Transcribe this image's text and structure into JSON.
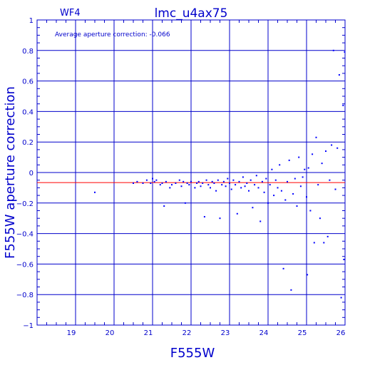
{
  "chart_data": {
    "type": "scatter",
    "title": "lmc_u4ax75",
    "chip_label": "WF4",
    "annotation": "Average aperture correction: -0.066",
    "xlabel": "F555W",
    "ylabel": "F555W aperture correction",
    "xlim": [
      18,
      26
    ],
    "ylim": [
      -1,
      1
    ],
    "x_ticks": [
      19,
      20,
      21,
      22,
      23,
      24,
      25,
      26
    ],
    "y_ticks": [
      -1,
      -0.8,
      -0.6,
      -0.4,
      -0.2,
      0,
      0.2,
      0.4,
      0.6,
      0.8,
      1
    ],
    "x_tick_labels": [
      "19",
      "20",
      "21",
      "22",
      "23",
      "24",
      "25",
      "26"
    ],
    "y_tick_labels": [
      "−1",
      "−0.8",
      "−0.6",
      "−0.4",
      "−0.2",
      "0",
      "0.2",
      "0.4",
      "0.6",
      "0.8",
      "1"
    ],
    "grid": true,
    "reference_line": {
      "y": -0.066,
      "color": "#ff0000"
    },
    "colors": {
      "axes": "#0000cc",
      "points": "#0000ff",
      "reference": "#ff0000"
    },
    "series": [
      {
        "points": [
          [
            19.5,
            -0.13
          ],
          [
            20.5,
            -0.07
          ],
          [
            20.6,
            -0.06
          ],
          [
            20.75,
            -0.07
          ],
          [
            20.85,
            -0.05
          ],
          [
            20.95,
            -0.07
          ],
          [
            21.0,
            -0.04
          ],
          [
            21.05,
            -0.06
          ],
          [
            21.1,
            -0.05
          ],
          [
            21.2,
            -0.08
          ],
          [
            21.25,
            -0.07
          ],
          [
            21.3,
            -0.22
          ],
          [
            21.35,
            -0.06
          ],
          [
            21.45,
            -0.1
          ],
          [
            21.5,
            -0.08
          ],
          [
            21.6,
            -0.07
          ],
          [
            21.7,
            -0.05
          ],
          [
            21.75,
            -0.09
          ],
          [
            21.8,
            -0.06
          ],
          [
            21.85,
            -0.2
          ],
          [
            21.9,
            -0.07
          ],
          [
            21.95,
            -0.08
          ],
          [
            22.0,
            -0.06
          ],
          [
            22.1,
            -0.1
          ],
          [
            22.15,
            -0.07
          ],
          [
            22.2,
            -0.06
          ],
          [
            22.25,
            -0.09
          ],
          [
            22.3,
            -0.07
          ],
          [
            22.35,
            -0.29
          ],
          [
            22.4,
            -0.05
          ],
          [
            22.45,
            -0.08
          ],
          [
            22.5,
            -0.1
          ],
          [
            22.55,
            -0.06
          ],
          [
            22.6,
            -0.07
          ],
          [
            22.65,
            -0.12
          ],
          [
            22.7,
            -0.05
          ],
          [
            22.75,
            -0.3
          ],
          [
            22.8,
            -0.08
          ],
          [
            22.85,
            -0.06
          ],
          [
            22.9,
            -0.09
          ],
          [
            22.95,
            -0.04
          ],
          [
            23.0,
            -0.07
          ],
          [
            23.05,
            -0.11
          ],
          [
            23.1,
            -0.05
          ],
          [
            23.15,
            -0.08
          ],
          [
            23.2,
            -0.27
          ],
          [
            23.25,
            -0.06
          ],
          [
            23.3,
            -0.1
          ],
          [
            23.35,
            -0.03
          ],
          [
            23.4,
            -0.09
          ],
          [
            23.45,
            -0.07
          ],
          [
            23.5,
            -0.12
          ],
          [
            23.55,
            -0.05
          ],
          [
            23.6,
            -0.23
          ],
          [
            23.65,
            -0.08
          ],
          [
            23.7,
            -0.02
          ],
          [
            23.75,
            -0.1
          ],
          [
            23.8,
            -0.32
          ],
          [
            23.85,
            -0.06
          ],
          [
            23.9,
            -0.13
          ],
          [
            23.95,
            -0.04
          ],
          [
            24.0,
            -0.2
          ],
          [
            24.05,
            -0.08
          ],
          [
            24.1,
            0.02
          ],
          [
            24.15,
            -0.15
          ],
          [
            24.2,
            -0.05
          ],
          [
            24.25,
            -0.1
          ],
          [
            24.3,
            0.05
          ],
          [
            24.35,
            -0.12
          ],
          [
            24.4,
            -0.63
          ],
          [
            24.45,
            -0.18
          ],
          [
            24.5,
            -0.06
          ],
          [
            24.55,
            0.08
          ],
          [
            24.6,
            -0.77
          ],
          [
            24.65,
            -0.14
          ],
          [
            24.7,
            -0.04
          ],
          [
            24.75,
            -0.22
          ],
          [
            24.8,
            0.1
          ],
          [
            24.85,
            -0.09
          ],
          [
            24.9,
            -0.03
          ],
          [
            24.95,
            0.02
          ],
          [
            25.0,
            -0.16
          ],
          [
            25.02,
            -0.67
          ],
          [
            25.05,
            0.03
          ],
          [
            25.1,
            -0.25
          ],
          [
            25.15,
            0.12
          ],
          [
            25.2,
            -0.46
          ],
          [
            25.25,
            0.23
          ],
          [
            25.3,
            -0.08
          ],
          [
            25.35,
            -0.3
          ],
          [
            25.4,
            0.06
          ],
          [
            25.45,
            -0.46
          ],
          [
            25.5,
            0.14
          ],
          [
            25.55,
            -0.42
          ],
          [
            25.6,
            -0.05
          ],
          [
            25.65,
            0.18
          ],
          [
            25.7,
            0.8
          ],
          [
            25.75,
            -0.11
          ],
          [
            25.8,
            0.16
          ],
          [
            25.85,
            0.64
          ],
          [
            25.9,
            -0.82
          ],
          [
            25.95,
            0.44
          ],
          [
            25.97,
            -0.57
          ],
          [
            25.99,
            0.79
          ]
        ]
      }
    ]
  }
}
